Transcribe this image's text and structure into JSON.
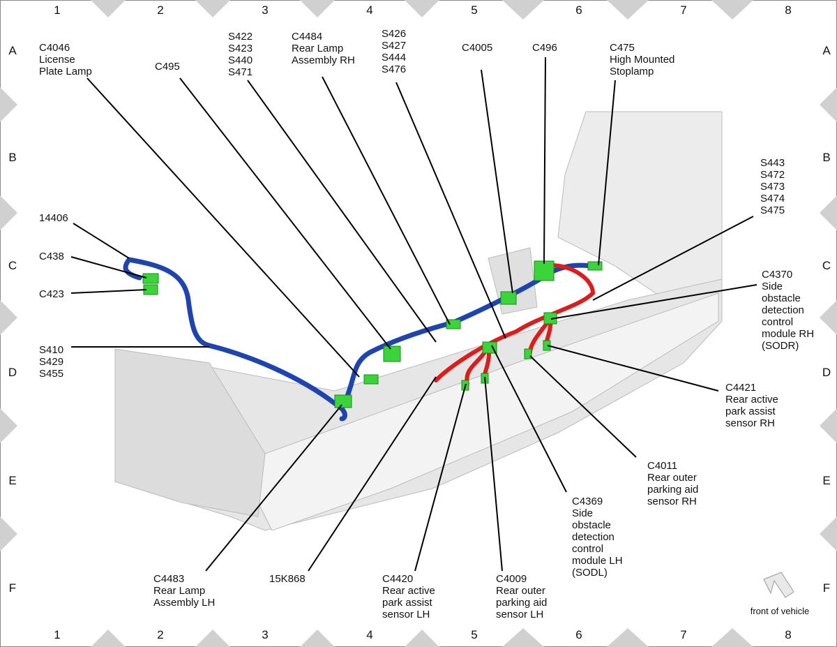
{
  "grid": {
    "columns": [
      "1",
      "2",
      "3",
      "4",
      "5",
      "6",
      "7",
      "8"
    ],
    "rows": [
      "A",
      "B",
      "C",
      "D",
      "E",
      "F"
    ]
  },
  "callouts": [
    {
      "lines": [
        "C4046",
        "License",
        "Plate Lamp"
      ]
    },
    {
      "lines": [
        "C495"
      ]
    },
    {
      "lines": [
        "S422",
        "S423",
        "S440",
        "S471"
      ]
    },
    {
      "lines": [
        "C4484",
        "Rear Lamp",
        "Assembly RH"
      ]
    },
    {
      "lines": [
        "S426",
        "S427",
        "S444",
        "S476"
      ]
    },
    {
      "lines": [
        "C4005"
      ]
    },
    {
      "lines": [
        "C496"
      ]
    },
    {
      "lines": [
        "C475",
        "High Mounted",
        "Stoplamp"
      ]
    },
    {
      "lines": [
        "S443",
        "S472",
        "S473",
        "S474",
        "S475"
      ]
    },
    {
      "lines": [
        "C4370",
        "Side",
        "obstacle",
        "detection",
        "control",
        "module RH",
        "(SODR)"
      ]
    },
    {
      "lines": [
        "14406"
      ]
    },
    {
      "lines": [
        "C438"
      ]
    },
    {
      "lines": [
        "C423"
      ]
    },
    {
      "lines": [
        "S410",
        "S429",
        "S455"
      ]
    },
    {
      "lines": [
        "C4421",
        "Rear active",
        "park assist",
        "sensor RH"
      ]
    },
    {
      "lines": [
        "C4011",
        "Rear outer",
        "parking aid",
        "sensor RH"
      ]
    },
    {
      "lines": [
        "C4369",
        "Side",
        "obstacle",
        "detection",
        "control",
        "module LH",
        "(SODL)"
      ]
    },
    {
      "lines": [
        "C4420",
        "Rear active",
        "park assist",
        "sensor LH"
      ]
    },
    {
      "lines": [
        "C4009",
        "Rear outer",
        "parking aid",
        "sensor LH"
      ]
    },
    {
      "lines": [
        "15K868"
      ]
    },
    {
      "lines": [
        "C4483",
        "Rear Lamp",
        "Assembly LH"
      ]
    }
  ],
  "front_label": "front of vehicle"
}
